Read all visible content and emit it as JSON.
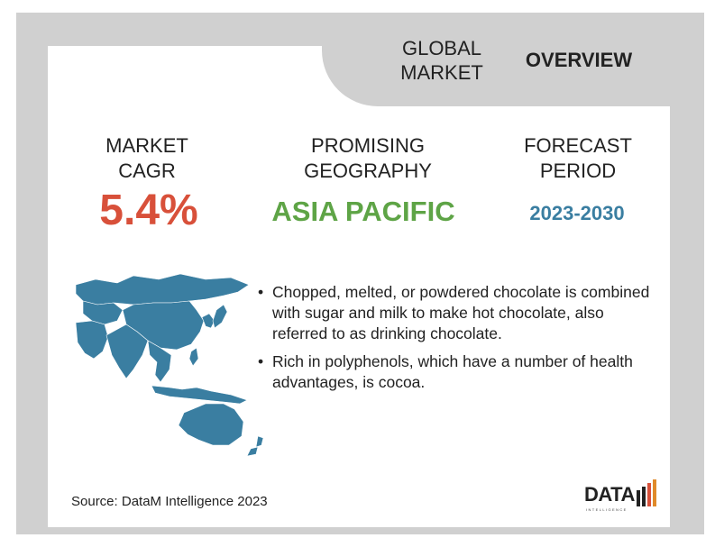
{
  "header": {
    "global_market": "GLOBAL\nMARKET",
    "overview": "OVERVIEW"
  },
  "stats": {
    "cagr": {
      "label": "MARKET\nCAGR",
      "value": "5.4%"
    },
    "geography": {
      "label": "PROMISING\nGEOGRAPHY",
      "value": "ASIA PACIFIC"
    },
    "period": {
      "label": "FORECAST\nPERIOD",
      "value": "2023-2030"
    }
  },
  "bullets": [
    "Chopped, melted, or powdered chocolate is combined with sugar and milk to make hot chocolate, also referred to as drinking chocolate.",
    "Rich in polyphenols, which have a number of health advantages, is cocoa."
  ],
  "bullet_glyph": "•",
  "source": "Source: DataM Intelligence 2023",
  "logo": {
    "word": "DATA",
    "tagline": "INTELLIGENCE"
  },
  "map": {
    "icon": "asia-pacific-map-icon",
    "color": "#3a7ea1"
  },
  "colors": {
    "cagr": "#d8503a",
    "geography": "#5ea446",
    "period": "#3a7ea1",
    "frame": "#d0d0d0"
  }
}
